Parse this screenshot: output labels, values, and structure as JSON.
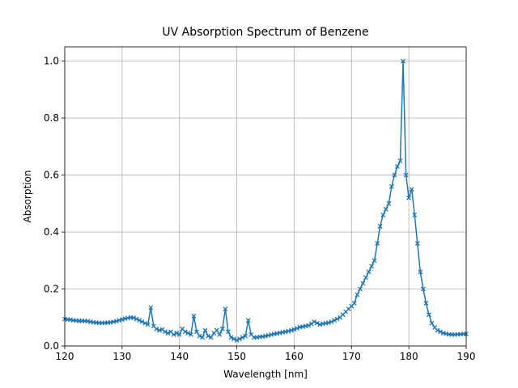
{
  "chart_data": {
    "type": "line",
    "title": "UV Absorption Spectrum of Benzene",
    "x_label": "Wavelength [nm]",
    "y_label": "Absorption",
    "x": [
      120,
      120.5,
      121,
      121.5,
      122,
      122.5,
      123,
      123.5,
      124,
      124.5,
      125,
      125.5,
      126,
      126.5,
      127,
      127.5,
      128,
      128.5,
      129,
      129.5,
      130,
      130.5,
      131,
      131.5,
      132,
      132.5,
      133,
      133.5,
      134,
      134.5,
      135,
      135.5,
      136,
      136.5,
      137,
      137.5,
      138,
      138.5,
      139,
      139.5,
      140,
      140.5,
      141,
      141.5,
      142,
      142.5,
      143,
      143.5,
      144,
      144.5,
      145,
      145.5,
      146,
      146.5,
      147,
      147.5,
      148,
      148.5,
      149,
      149.5,
      150,
      150.5,
      151,
      151.5,
      152,
      152.5,
      153,
      153.5,
      154,
      154.5,
      155,
      155.5,
      156,
      156.5,
      157,
      157.5,
      158,
      158.5,
      159,
      159.5,
      160,
      160.5,
      161,
      161.5,
      162,
      162.5,
      163,
      163.5,
      164,
      164.5,
      165,
      165.5,
      166,
      166.5,
      167,
      167.5,
      168,
      168.5,
      169,
      169.5,
      170,
      170.5,
      171,
      171.5,
      172,
      172.5,
      173,
      173.5,
      174,
      174.5,
      175,
      175.5,
      176,
      176.5,
      177,
      177.5,
      178,
      178.5,
      179,
      179.5,
      180,
      180.5,
      181,
      181.5,
      182,
      182.5,
      183,
      183.5,
      184,
      184.5,
      185,
      185.5,
      186,
      186.5,
      187,
      187.5,
      188,
      188.5,
      189,
      189.5,
      190
    ],
    "series": [
      {
        "color": "#1f77b4",
        "values": [
          0.095,
          0.093,
          0.092,
          0.09,
          0.089,
          0.088,
          0.088,
          0.088,
          0.087,
          0.085,
          0.083,
          0.082,
          0.081,
          0.081,
          0.081,
          0.082,
          0.083,
          0.085,
          0.087,
          0.09,
          0.093,
          0.096,
          0.098,
          0.1,
          0.099,
          0.095,
          0.09,
          0.085,
          0.08,
          0.075,
          0.135,
          0.07,
          0.06,
          0.055,
          0.058,
          0.05,
          0.045,
          0.05,
          0.04,
          0.045,
          0.04,
          0.06,
          0.05,
          0.045,
          0.04,
          0.105,
          0.05,
          0.035,
          0.03,
          0.055,
          0.035,
          0.03,
          0.045,
          0.055,
          0.04,
          0.06,
          0.13,
          0.05,
          0.03,
          0.025,
          0.02,
          0.025,
          0.03,
          0.035,
          0.09,
          0.04,
          0.03,
          0.03,
          0.032,
          0.033,
          0.035,
          0.037,
          0.04,
          0.042,
          0.044,
          0.046,
          0.048,
          0.05,
          0.052,
          0.055,
          0.058,
          0.062,
          0.066,
          0.068,
          0.07,
          0.072,
          0.078,
          0.085,
          0.08,
          0.075,
          0.078,
          0.08,
          0.082,
          0.085,
          0.09,
          0.095,
          0.1,
          0.11,
          0.12,
          0.13,
          0.14,
          0.15,
          0.18,
          0.2,
          0.22,
          0.24,
          0.26,
          0.28,
          0.3,
          0.36,
          0.42,
          0.46,
          0.48,
          0.5,
          0.56,
          0.6,
          0.63,
          0.65,
          1.0,
          0.6,
          0.52,
          0.55,
          0.46,
          0.36,
          0.26,
          0.2,
          0.15,
          0.11,
          0.08,
          0.065,
          0.055,
          0.05,
          0.045,
          0.043,
          0.041,
          0.04,
          0.04,
          0.041,
          0.041,
          0.042,
          0.042
        ]
      }
    ],
    "xlim": [
      120,
      190
    ],
    "xticks": [
      120,
      130,
      140,
      150,
      160,
      170,
      180,
      190
    ],
    "ylim": [
      0,
      1.05
    ],
    "yticks": [
      {
        "value": 0,
        "label": "0.0"
      },
      {
        "value": 0.2,
        "label": "0.2"
      },
      {
        "value": 0.4,
        "label": "0.4"
      },
      {
        "value": 0.6,
        "label": "0.6"
      },
      {
        "value": 0.8,
        "label": "0.8"
      },
      {
        "value": 1.0,
        "label": "1.0"
      }
    ],
    "grid": true
  }
}
